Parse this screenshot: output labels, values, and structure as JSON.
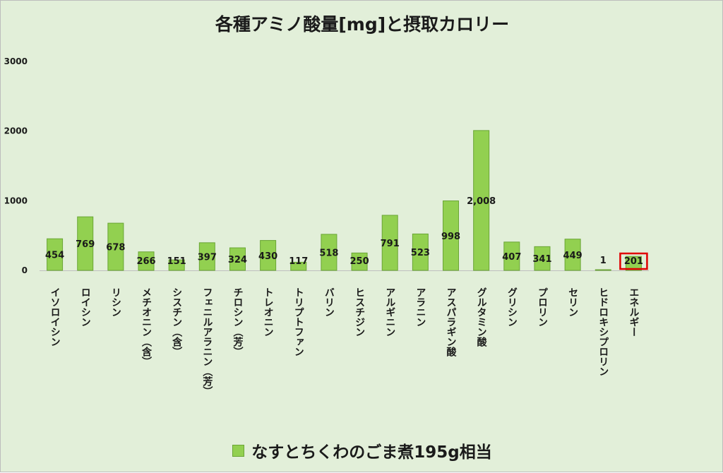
{
  "chart_data": {
    "type": "bar",
    "title": "各種アミノ酸量[mg]と摂取カロリー",
    "categories": [
      "イソロイシン",
      "ロイシン",
      "リシン",
      "メチオニン（含）",
      "シスチン（含）",
      "フェニルアラニン（芳）",
      "チロシン（芳）",
      "トレオニン",
      "トリプトファン",
      "バリン",
      "ヒスチジン",
      "アルギニン",
      "アラニン",
      "アスパラギン酸",
      "グルタミン酸",
      "グリシン",
      "プロリン",
      "セリン",
      "ヒドロキシプロリン",
      "エネルギー"
    ],
    "series": [
      {
        "name": "なすとちくわのごま煮195g相当",
        "values": [
          454,
          769,
          678,
          266,
          151,
          397,
          324,
          430,
          117,
          518,
          250,
          791,
          523,
          998,
          2008,
          407,
          341,
          449,
          1,
          201
        ],
        "data_labels": [
          "454",
          "769",
          "678",
          "266",
          "151",
          "397",
          "324",
          "430",
          "117",
          "518",
          "250",
          "791",
          "523",
          "998",
          "2,008",
          "407",
          "341",
          "449",
          "1",
          "201"
        ]
      }
    ],
    "ylim": [
      0,
      3000
    ],
    "yticks": [
      0,
      1000,
      2000,
      3000
    ],
    "ytick_labels": [
      "0",
      "1000",
      "2000",
      "3000"
    ],
    "grid": false,
    "legend_position": "bottom",
    "highlighted_category": "エネルギー",
    "colors": {
      "bar": "#92d050",
      "bar_border": "#6aa535",
      "background": "#e2efd9",
      "highlight_box": "#e00000"
    }
  }
}
